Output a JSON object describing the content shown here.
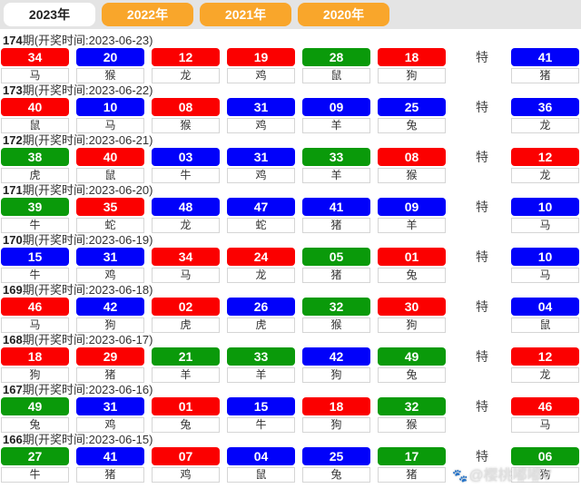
{
  "tabs": [
    {
      "label": "2023年",
      "active": true
    },
    {
      "label": "2022年",
      "active": false
    },
    {
      "label": "2021年",
      "active": false
    },
    {
      "label": "2020年",
      "active": false
    }
  ],
  "special_label": "特",
  "colors": {
    "red": "#fb0000",
    "blue": "#0101fa",
    "green": "#0a9a0a",
    "tab_orange": "#f9a62b",
    "tabbar_bg": "#e4e4e4"
  },
  "watermark": {
    "icon": "paw-icon",
    "text": "@樱桃嘟嘟V"
  },
  "draws": [
    {
      "period": "174",
      "info": "期(开奖时间:2023-06-23)",
      "numbers": [
        {
          "num": "34",
          "color": "red",
          "zodiac": "马"
        },
        {
          "num": "20",
          "color": "blue",
          "zodiac": "猴"
        },
        {
          "num": "12",
          "color": "red",
          "zodiac": "龙"
        },
        {
          "num": "19",
          "color": "red",
          "zodiac": "鸡"
        },
        {
          "num": "28",
          "color": "green",
          "zodiac": "鼠"
        },
        {
          "num": "18",
          "color": "red",
          "zodiac": "狗"
        }
      ],
      "special": {
        "num": "41",
        "color": "blue",
        "zodiac": "猪"
      }
    },
    {
      "period": "173",
      "info": "期(开奖时间:2023-06-22)",
      "numbers": [
        {
          "num": "40",
          "color": "red",
          "zodiac": "鼠"
        },
        {
          "num": "10",
          "color": "blue",
          "zodiac": "马"
        },
        {
          "num": "08",
          "color": "red",
          "zodiac": "猴"
        },
        {
          "num": "31",
          "color": "blue",
          "zodiac": "鸡"
        },
        {
          "num": "09",
          "color": "blue",
          "zodiac": "羊"
        },
        {
          "num": "25",
          "color": "blue",
          "zodiac": "兔"
        }
      ],
      "special": {
        "num": "36",
        "color": "blue",
        "zodiac": "龙"
      }
    },
    {
      "period": "172",
      "info": "期(开奖时间:2023-06-21)",
      "numbers": [
        {
          "num": "38",
          "color": "green",
          "zodiac": "虎"
        },
        {
          "num": "40",
          "color": "red",
          "zodiac": "鼠"
        },
        {
          "num": "03",
          "color": "blue",
          "zodiac": "牛"
        },
        {
          "num": "31",
          "color": "blue",
          "zodiac": "鸡"
        },
        {
          "num": "33",
          "color": "green",
          "zodiac": "羊"
        },
        {
          "num": "08",
          "color": "red",
          "zodiac": "猴"
        }
      ],
      "special": {
        "num": "12",
        "color": "red",
        "zodiac": "龙"
      }
    },
    {
      "period": "171",
      "info": "期(开奖时间:2023-06-20)",
      "numbers": [
        {
          "num": "39",
          "color": "green",
          "zodiac": "牛"
        },
        {
          "num": "35",
          "color": "red",
          "zodiac": "蛇"
        },
        {
          "num": "48",
          "color": "blue",
          "zodiac": "龙"
        },
        {
          "num": "47",
          "color": "blue",
          "zodiac": "蛇"
        },
        {
          "num": "41",
          "color": "blue",
          "zodiac": "猪"
        },
        {
          "num": "09",
          "color": "blue",
          "zodiac": "羊"
        }
      ],
      "special": {
        "num": "10",
        "color": "blue",
        "zodiac": "马"
      }
    },
    {
      "period": "170",
      "info": "期(开奖时间:2023-06-19)",
      "numbers": [
        {
          "num": "15",
          "color": "blue",
          "zodiac": "牛"
        },
        {
          "num": "31",
          "color": "blue",
          "zodiac": "鸡"
        },
        {
          "num": "34",
          "color": "red",
          "zodiac": "马"
        },
        {
          "num": "24",
          "color": "red",
          "zodiac": "龙"
        },
        {
          "num": "05",
          "color": "green",
          "zodiac": "猪"
        },
        {
          "num": "01",
          "color": "red",
          "zodiac": "兔"
        }
      ],
      "special": {
        "num": "10",
        "color": "blue",
        "zodiac": "马"
      }
    },
    {
      "period": "169",
      "info": "期(开奖时间:2023-06-18)",
      "numbers": [
        {
          "num": "46",
          "color": "red",
          "zodiac": "马"
        },
        {
          "num": "42",
          "color": "blue",
          "zodiac": "狗"
        },
        {
          "num": "02",
          "color": "red",
          "zodiac": "虎"
        },
        {
          "num": "26",
          "color": "blue",
          "zodiac": "虎"
        },
        {
          "num": "32",
          "color": "green",
          "zodiac": "猴"
        },
        {
          "num": "30",
          "color": "red",
          "zodiac": "狗"
        }
      ],
      "special": {
        "num": "04",
        "color": "blue",
        "zodiac": "鼠"
      }
    },
    {
      "period": "168",
      "info": "期(开奖时间:2023-06-17)",
      "numbers": [
        {
          "num": "18",
          "color": "red",
          "zodiac": "狗"
        },
        {
          "num": "29",
          "color": "red",
          "zodiac": "猪"
        },
        {
          "num": "21",
          "color": "green",
          "zodiac": "羊"
        },
        {
          "num": "33",
          "color": "green",
          "zodiac": "羊"
        },
        {
          "num": "42",
          "color": "blue",
          "zodiac": "狗"
        },
        {
          "num": "49",
          "color": "green",
          "zodiac": "兔"
        }
      ],
      "special": {
        "num": "12",
        "color": "red",
        "zodiac": "龙"
      }
    },
    {
      "period": "167",
      "info": "期(开奖时间:2023-06-16)",
      "numbers": [
        {
          "num": "49",
          "color": "green",
          "zodiac": "兔"
        },
        {
          "num": "31",
          "color": "blue",
          "zodiac": "鸡"
        },
        {
          "num": "01",
          "color": "red",
          "zodiac": "兔"
        },
        {
          "num": "15",
          "color": "blue",
          "zodiac": "牛"
        },
        {
          "num": "18",
          "color": "red",
          "zodiac": "狗"
        },
        {
          "num": "32",
          "color": "green",
          "zodiac": "猴"
        }
      ],
      "special": {
        "num": "46",
        "color": "red",
        "zodiac": "马"
      }
    },
    {
      "period": "166",
      "info": "期(开奖时间:2023-06-15)",
      "numbers": [
        {
          "num": "27",
          "color": "green",
          "zodiac": "牛"
        },
        {
          "num": "41",
          "color": "blue",
          "zodiac": "猪"
        },
        {
          "num": "07",
          "color": "red",
          "zodiac": "鸡"
        },
        {
          "num": "04",
          "color": "blue",
          "zodiac": "鼠"
        },
        {
          "num": "25",
          "color": "blue",
          "zodiac": "兔"
        },
        {
          "num": "17",
          "color": "green",
          "zodiac": "猪"
        }
      ],
      "special": {
        "num": "06",
        "color": "green",
        "zodiac": "狗"
      }
    }
  ]
}
